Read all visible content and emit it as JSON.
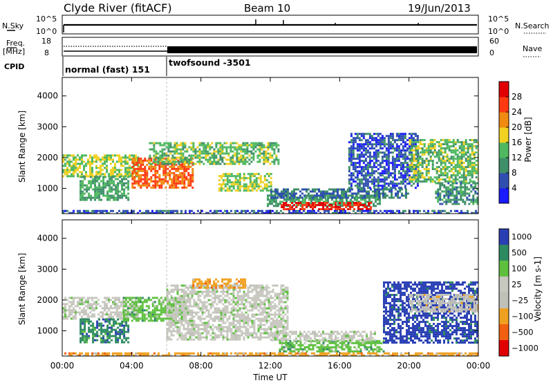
{
  "header": {
    "station": "Clyde River (fitACF)",
    "beam": "Beam 10",
    "date": "19/Jun/2013"
  },
  "status_panels": {
    "nsky_label": "N.Sky",
    "nsearch_label": "N.Search",
    "nsky_ticks": [
      "10^5",
      "10^0"
    ],
    "nsearch_ticks": [
      "10^5",
      "10^0"
    ],
    "freq_label_1": "Freq.",
    "freq_label_2": "[MHz]",
    "freq_ticks": [
      "18",
      "8"
    ],
    "nave_label": "Nave",
    "nave_ticks": [
      "60",
      "0"
    ],
    "cpid_label": "CPID",
    "cpid_segments": [
      {
        "label": "normal (fast) 151",
        "start_hour": 0,
        "end_hour": 6
      },
      {
        "label": "twofsound -3501",
        "start_hour": 6,
        "end_hour": 24
      }
    ]
  },
  "chart_data": [
    {
      "type": "heatmap",
      "name": "Power",
      "ylabel": "Slant Range [km]",
      "colorbar_label": "Power [dB]",
      "colorbar_ticks": [
        4,
        8,
        12,
        16,
        20,
        24,
        28
      ],
      "colorbar_range": [
        0,
        32
      ],
      "ylim": [
        180,
        4600
      ],
      "yticks": [
        1000,
        2000,
        3000,
        4000
      ],
      "xlim_hours": [
        0,
        24
      ],
      "colors": [
        "#1a1aff",
        "#2f4fb0",
        "#3f8f6a",
        "#4fb860",
        "#f0d020",
        "#f08a10",
        "#ff3a10",
        "#e00000"
      ],
      "regions": [
        {
          "t0": 0.0,
          "t1": 4.4,
          "r0": 1400,
          "r1": 2100,
          "level": 16
        },
        {
          "t0": 1.0,
          "t1": 3.8,
          "r0": 600,
          "r1": 1400,
          "level": 12
        },
        {
          "t0": 4.0,
          "t1": 7.5,
          "r0": 1000,
          "r1": 2000,
          "level": 24
        },
        {
          "t0": 5.0,
          "t1": 12.5,
          "r0": 1800,
          "r1": 2500,
          "level": 14
        },
        {
          "t0": 9.0,
          "t1": 12.0,
          "r0": 900,
          "r1": 1500,
          "level": 16
        },
        {
          "t0": 11.8,
          "t1": 18.3,
          "r0": 400,
          "r1": 800,
          "level": 12
        },
        {
          "t0": 12.6,
          "t1": 17.8,
          "r0": 300,
          "r1": 560,
          "level": 28
        },
        {
          "t0": 12.0,
          "t1": 20.0,
          "r0": 700,
          "r1": 1000,
          "level": 8
        },
        {
          "t0": 16.5,
          "t1": 20.5,
          "r0": 1000,
          "r1": 2800,
          "level": 6
        },
        {
          "t0": 20.0,
          "t1": 24.0,
          "r0": 1200,
          "r1": 2600,
          "level": 14
        },
        {
          "t0": 21.5,
          "t1": 24.0,
          "r0": 500,
          "r1": 1200,
          "level": 10
        },
        {
          "t0": 0.0,
          "t1": 24.0,
          "r0": 200,
          "r1": 300,
          "level": 6
        }
      ]
    },
    {
      "type": "heatmap",
      "name": "Velocity",
      "ylabel": "Slant Range [km]",
      "colorbar_label": "Velocity [m s-1]",
      "colorbar_ticks": [
        "1000",
        "500",
        "100",
        "25",
        "−25",
        "−100",
        "−500",
        "−1000"
      ],
      "ylim": [
        180,
        4600
      ],
      "yticks": [
        1000,
        2000,
        3000,
        4000
      ],
      "xlim_hours": [
        0,
        24
      ],
      "xticks": [
        "00:00",
        "04:00",
        "08:00",
        "12:00",
        "16:00",
        "20:00",
        "00:00"
      ],
      "xlabel": "Time UT",
      "colors": [
        "#2a3fb4",
        "#2d8a60",
        "#5fc040",
        "#c8c8c0",
        "#c0c0b8",
        "#f0a020",
        "#f06010",
        "#e00000"
      ],
      "regions": [
        {
          "t0": 0.0,
          "t1": 4.5,
          "r0": 1400,
          "r1": 2100,
          "level": 3
        },
        {
          "t0": 1.0,
          "t1": 3.8,
          "r0": 600,
          "r1": 1400,
          "level": 1
        },
        {
          "t0": 3.5,
          "t1": 7.0,
          "r0": 1300,
          "r1": 2100,
          "level": 2
        },
        {
          "t0": 6.0,
          "t1": 13.0,
          "r0": 700,
          "r1": 2500,
          "level": 3
        },
        {
          "t0": 7.5,
          "t1": 10.5,
          "r0": 2400,
          "r1": 2700,
          "level": 5
        },
        {
          "t0": 12.5,
          "t1": 18.5,
          "r0": 350,
          "r1": 700,
          "level": 2
        },
        {
          "t0": 12.0,
          "t1": 18.0,
          "r0": 700,
          "r1": 1000,
          "level": 3
        },
        {
          "t0": 18.5,
          "t1": 24.0,
          "r0": 600,
          "r1": 2600,
          "level": 0
        },
        {
          "t0": 20.0,
          "t1": 24.0,
          "r0": 1600,
          "r1": 2200,
          "level": 4
        },
        {
          "t0": 0.0,
          "t1": 24.0,
          "r0": 200,
          "r1": 300,
          "level": 5
        }
      ]
    }
  ]
}
